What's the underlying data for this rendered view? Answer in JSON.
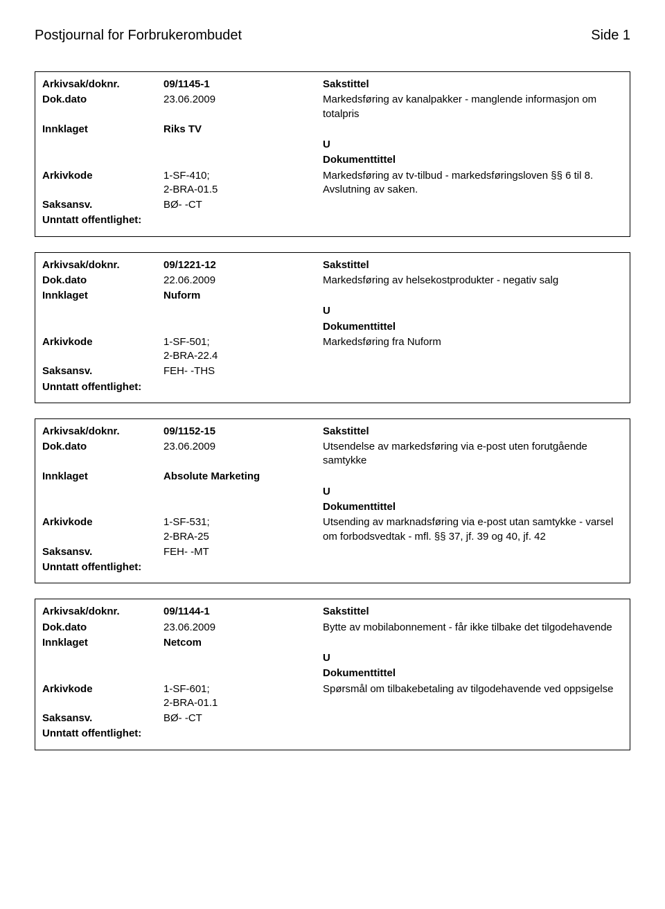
{
  "header": {
    "journal_title": "Postjournal for Forbrukerombudet",
    "page_label": "Side 1"
  },
  "labels": {
    "arkivsak": "Arkivsak/doknr.",
    "dokdato": "Dok.dato",
    "innklaget": "Innklaget",
    "arkivkode": "Arkivkode",
    "saksansv": "Saksansv.",
    "unntatt": "Unntatt offentlighet:",
    "sakstittel": "Sakstittel",
    "dokumenttittel": "Dokumenttittel"
  },
  "records": [
    {
      "arkivsak": "09/1145-1",
      "dokdato": "23.06.2009",
      "innklaget": "Riks TV",
      "arkivkode": "1-SF-410;\n2-BRA-01.5",
      "saksansv": "BØ- -CT",
      "u": "U",
      "sakstittel_text": "Markedsføring av kanalpakker - manglende informasjon om totalpris",
      "dokumenttittel_text": "Markedsføring av tv-tilbud - markedsføringsloven §§ 6 til 8. Avslutning av saken."
    },
    {
      "arkivsak": "09/1221-12",
      "dokdato": "22.06.2009",
      "innklaget": "Nuform",
      "arkivkode": "1-SF-501;\n2-BRA-22.4",
      "saksansv": "FEH- -THS",
      "u": "U",
      "sakstittel_text": "Markedsføring av helsekostprodukter - negativ salg",
      "dokumenttittel_text": "Markedsføring fra Nuform"
    },
    {
      "arkivsak": "09/1152-15",
      "dokdato": "23.06.2009",
      "innklaget": "Absolute Marketing",
      "arkivkode": "1-SF-531;\n2-BRA-25",
      "saksansv": "FEH- -MT",
      "u": "U",
      "sakstittel_text": "Utsendelse av markedsføring via e-post uten forutgående samtykke",
      "dokumenttittel_text": "Utsending av marknadsføring via e-post utan samtykke - varsel om forbodsvedtak - mfl. §§ 37, jf. 39 og 40, jf. 42"
    },
    {
      "arkivsak": "09/1144-1",
      "dokdato": "23.06.2009",
      "innklaget": "Netcom",
      "arkivkode": "1-SF-601;\n2-BRA-01.1",
      "saksansv": "BØ- -CT",
      "u": "U",
      "sakstittel_text": "Bytte av mobilabonnement - får ikke tilbake det tilgodehavende",
      "dokumenttittel_text": "Spørsmål om tilbakebetaling av tilgodehavende ved oppsigelse"
    }
  ]
}
